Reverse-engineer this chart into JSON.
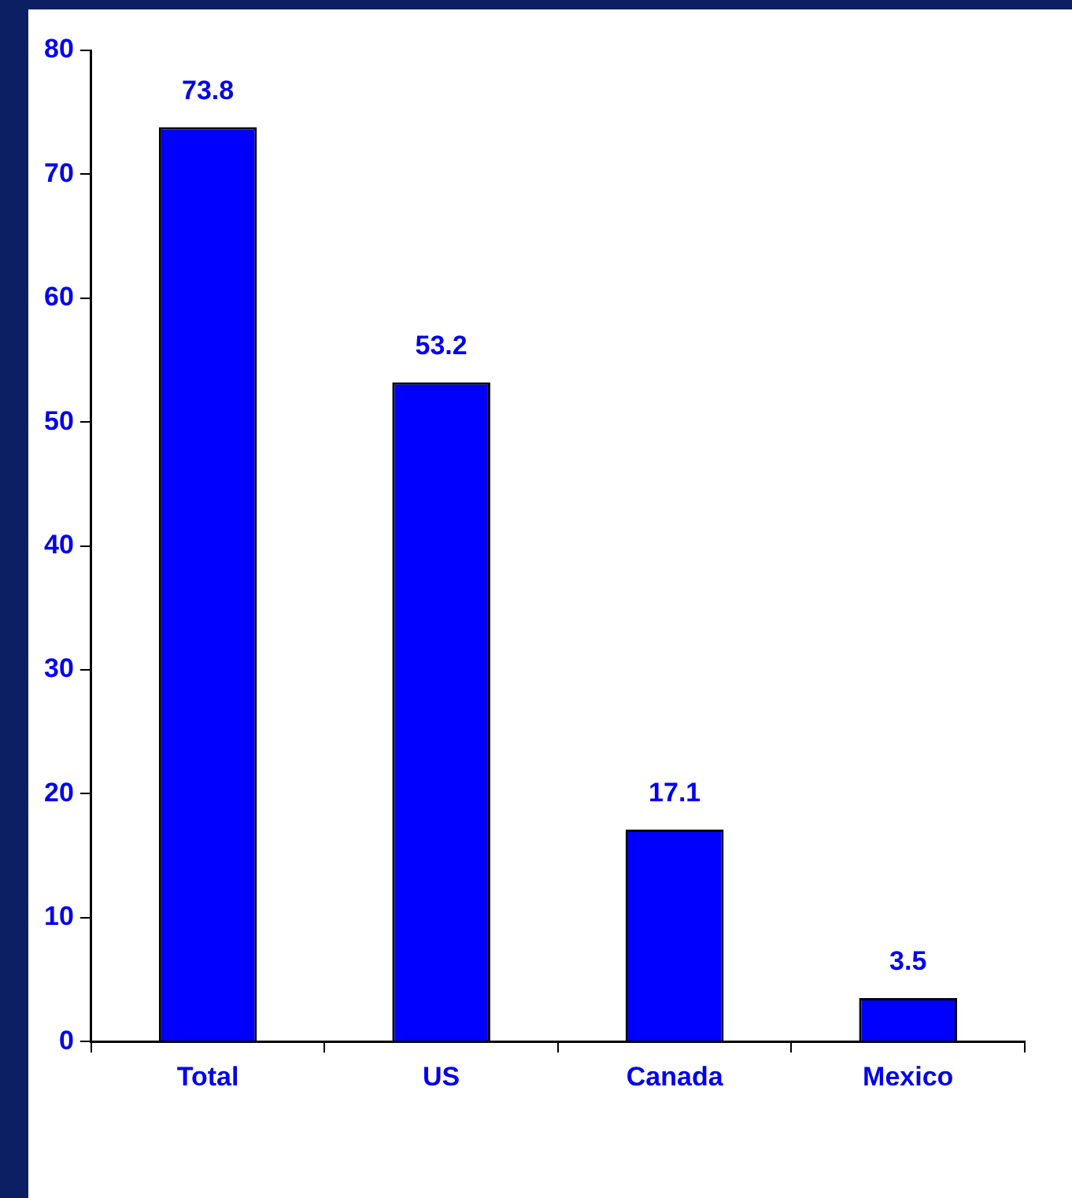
{
  "chart_data": {
    "type": "bar",
    "categories": [
      "Total",
      "US",
      "Canada",
      "Mexico"
    ],
    "values": [
      73.8,
      53.2,
      17.1,
      3.5
    ],
    "color": "#0000ff",
    "ylim": [
      0,
      80
    ],
    "yticks": [
      0,
      10,
      20,
      30,
      40,
      50,
      60,
      70,
      80
    ],
    "grid": false,
    "data_labels": true
  }
}
